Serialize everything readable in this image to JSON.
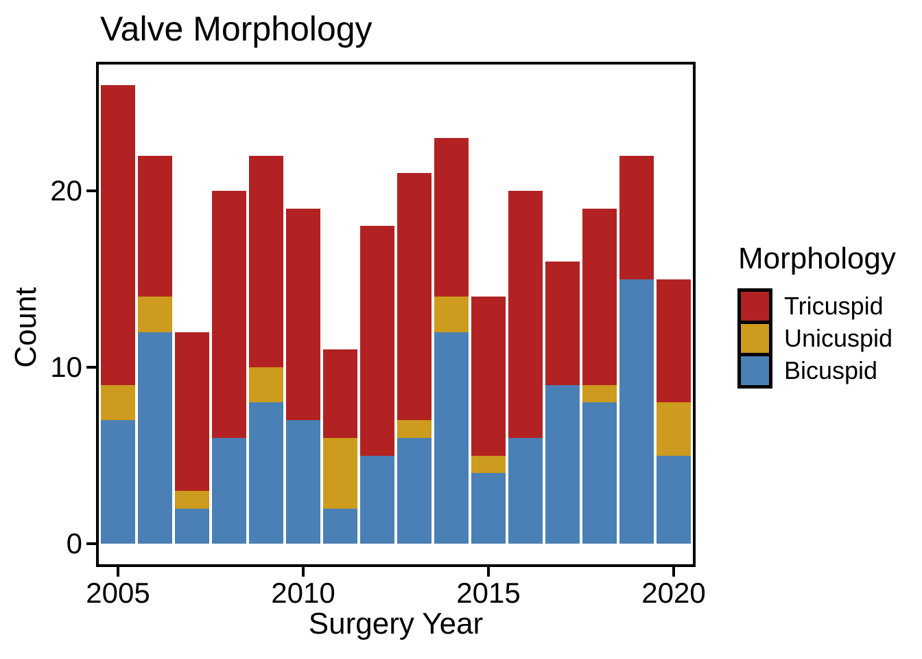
{
  "title": "Valve Morphology",
  "axes": {
    "y_label": "Count",
    "x_label": "Surgery Year",
    "y_ticks": [
      0,
      10,
      20
    ],
    "x_ticks": [
      2005,
      2010,
      2015,
      2020
    ]
  },
  "legend": {
    "title": "Morphology",
    "items": [
      {
        "label": "Tricuspid",
        "color": "#B22222"
      },
      {
        "label": "Unicuspid",
        "color": "#CD9B1D"
      },
      {
        "label": "Bicuspid",
        "color": "#4A80B5"
      }
    ]
  },
  "colors": {
    "tricuspid": "#B22222",
    "unicuspid": "#CD9B1D",
    "bicuspid": "#4A80B5",
    "axis": "#000000",
    "background": "#FFFFFF"
  },
  "chart_data": {
    "type": "bar",
    "stacked": true,
    "title": "Valve Morphology",
    "xlabel": "Surgery Year",
    "ylabel": "Count",
    "ylim": [
      0,
      27
    ],
    "grid": false,
    "legend_position": "right",
    "categories": [
      2005,
      2006,
      2007,
      2008,
      2009,
      2010,
      2011,
      2012,
      2013,
      2014,
      2015,
      2016,
      2017,
      2018,
      2019,
      2020
    ],
    "series": [
      {
        "name": "Bicuspid",
        "color": "#4A80B5",
        "values": [
          7,
          12,
          2,
          6,
          8,
          7,
          2,
          5,
          6,
          12,
          4,
          6,
          9,
          8,
          15,
          5
        ]
      },
      {
        "name": "Unicuspid",
        "color": "#CD9B1D",
        "values": [
          2,
          2,
          1,
          0,
          2,
          0,
          4,
          0,
          1,
          2,
          1,
          0,
          0,
          1,
          0,
          3
        ]
      },
      {
        "name": "Tricuspid",
        "color": "#B22222",
        "values": [
          17,
          8,
          9,
          14,
          12,
          12,
          5,
          13,
          14,
          9,
          9,
          14,
          7,
          10,
          7,
          7
        ]
      }
    ],
    "totals": [
      26,
      22,
      12,
      20,
      22,
      19,
      11,
      18,
      21,
      23,
      14,
      20,
      16,
      19,
      22,
      15
    ]
  }
}
